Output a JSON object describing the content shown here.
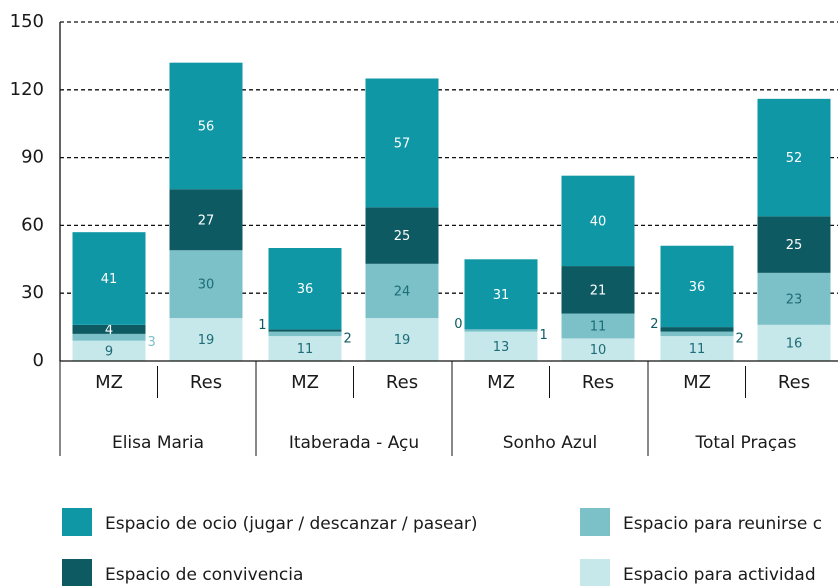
{
  "chart_data": {
    "type": "stacked_bar",
    "groups": [
      "Elisa Maria",
      "Itaberada - Açu",
      "Sonho Azul",
      "Total Praças"
    ],
    "categories": [
      "MZ",
      "Res",
      "MZ",
      "Res",
      "MZ",
      "Res",
      "MZ",
      "Res"
    ],
    "series": [
      {
        "name": "Espacio para actividad",
        "color": "#c6e8eb",
        "values": [
          9,
          19,
          11,
          19,
          13,
          10,
          11,
          16
        ]
      },
      {
        "name": "Espacio para reunirse c",
        "color": "#7cc1c8",
        "values": [
          3,
          30,
          2,
          24,
          1,
          11,
          2,
          23
        ]
      },
      {
        "name": "Espacio de convivencia",
        "color": "#0d5a63",
        "values": [
          4,
          27,
          1,
          25,
          0,
          21,
          2,
          25
        ]
      },
      {
        "name": "Espacio de ocio (jugar / descanzar / pasear)",
        "color": "#0f97a6",
        "values": [
          41,
          56,
          36,
          57,
          31,
          40,
          36,
          52
        ]
      }
    ],
    "ylim": [
      0,
      150
    ],
    "yticks": [
      0,
      30,
      60,
      90,
      120,
      150
    ],
    "grid": true
  }
}
